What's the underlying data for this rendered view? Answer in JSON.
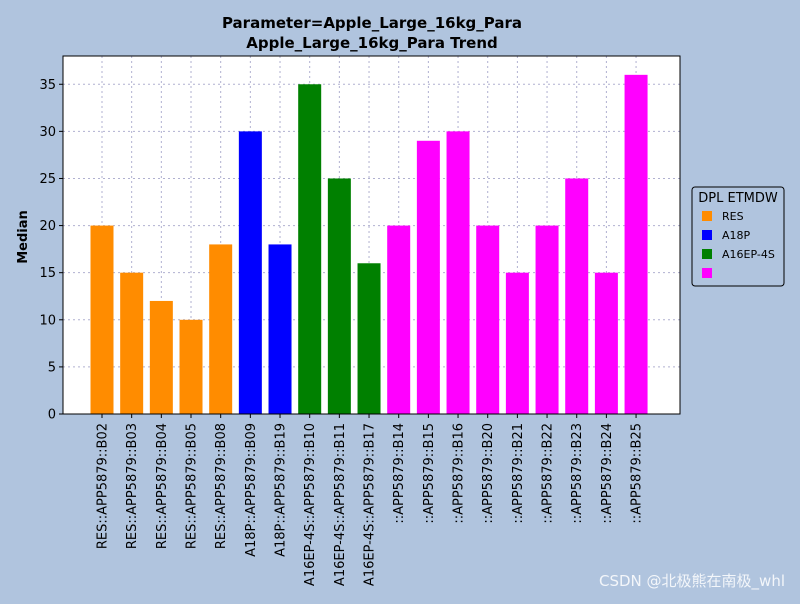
{
  "chart_data": {
    "type": "bar",
    "title_line1": "Parameter=Apple_Large_16kg_Para",
    "title_line2": "Apple_Large_16kg_Para Trend",
    "ylabel": "Median",
    "xlabel": "",
    "ylim": [
      0,
      38
    ],
    "yticks": [
      0,
      5,
      10,
      15,
      20,
      25,
      30,
      35
    ],
    "grid": true,
    "legend": {
      "title": "DPL ETMDW",
      "placement": "right",
      "entries": [
        {
          "label": "RES",
          "color": "#ff8c00"
        },
        {
          "label": "A18P",
          "color": "#0000ff"
        },
        {
          "label": "A16EP-4S",
          "color": "#008000"
        },
        {
          "label": "",
          "color": "#ff00ff"
        }
      ]
    },
    "categories": [
      "RES::APP5879::B02",
      "RES::APP5879::B03",
      "RES::APP5879::B04",
      "RES::APP5879::B05",
      "RES::APP5879::B08",
      "A18P::APP5879::B09",
      "A18P::APP5879::B19",
      "A16EP-4S::APP5879::B10",
      "A16EP-4S::APP5879::B11",
      "A16EP-4S::APP5879::B17",
      "::APP5879::B14",
      "::APP5879::B15",
      "::APP5879::B16",
      "::APP5879::B20",
      "::APP5879::B21",
      "::APP5879::B22",
      "::APP5879::B23",
      "::APP5879::B24",
      "::APP5879::B25"
    ],
    "values": [
      20,
      15,
      12,
      10,
      18,
      30,
      18,
      35,
      25,
      16,
      20,
      29,
      30,
      20,
      15,
      20,
      25,
      15,
      36
    ],
    "groups": [
      0,
      0,
      0,
      0,
      0,
      1,
      1,
      2,
      2,
      2,
      3,
      3,
      3,
      3,
      3,
      3,
      3,
      3,
      3
    ]
  },
  "watermark": "CSDN @北极熊在南极_whl"
}
